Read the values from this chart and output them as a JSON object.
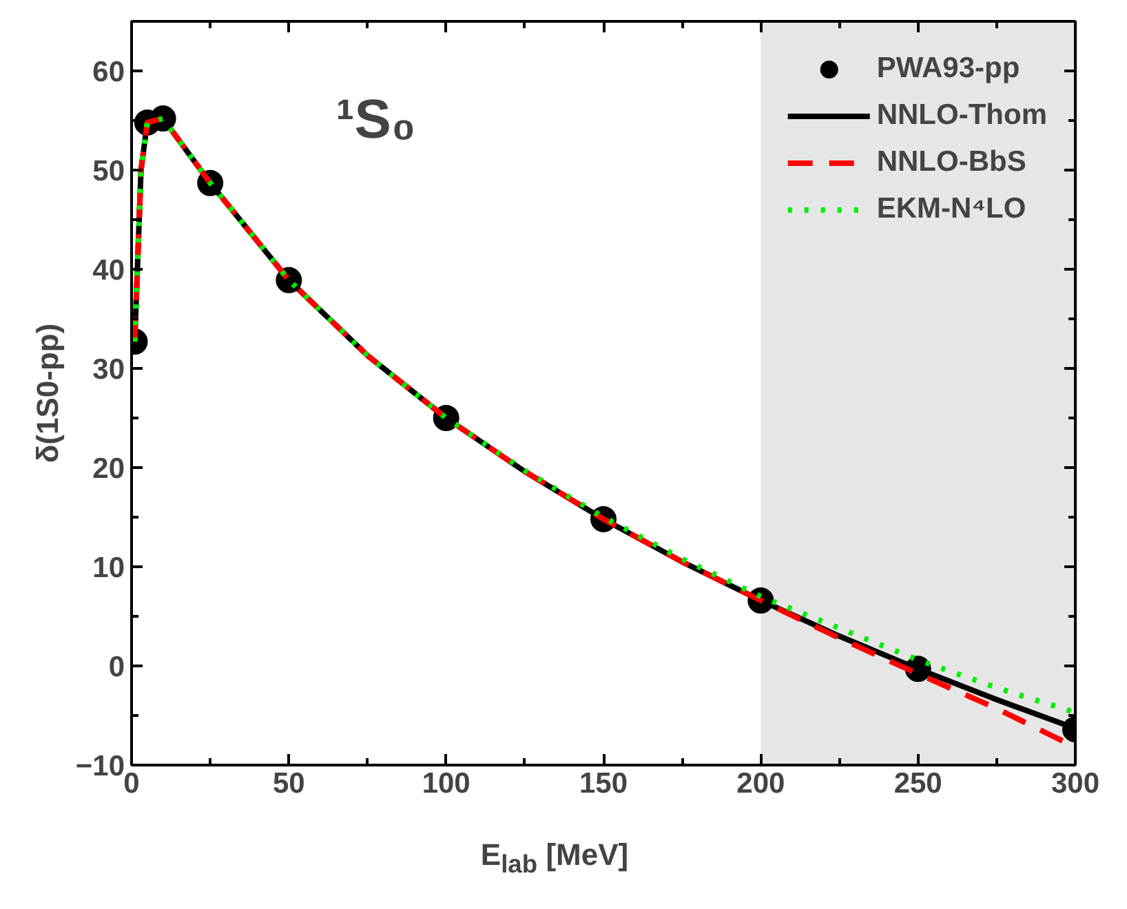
{
  "chart_data": {
    "type": "line",
    "xlabel": "E$_{lab}$ [MeV]",
    "ylabel": "δ(1S0-pp)",
    "annotations": [
      "¹S₀"
    ],
    "xlim": [
      0,
      300
    ],
    "xticks": [
      0,
      50,
      100,
      150,
      200,
      250,
      300
    ],
    "ylim": [
      -10,
      65
    ],
    "yticks": [
      -10,
      0,
      10,
      20,
      30,
      40,
      50,
      60
    ],
    "grid": false,
    "legend": "top right",
    "bands": [
      {
        "axis": "x",
        "from": 200,
        "to": 300,
        "color": "#e6e6e6"
      }
    ],
    "series": [
      {
        "name": "PWA93-pp",
        "type": "scatter",
        "marker": "circle",
        "color": "#000000",
        "x": [
          1,
          5,
          10,
          25,
          50,
          100,
          150,
          200,
          250,
          300
        ],
        "values": [
          32.7,
          54.8,
          55.2,
          48.7,
          38.9,
          25.0,
          14.8,
          6.6,
          -0.3,
          -6.4
        ]
      },
      {
        "name": "NNLO-Thom",
        "line_style": "solid",
        "color": "#000000",
        "x": [
          1,
          3,
          5,
          10,
          25,
          50,
          75,
          100,
          125,
          150,
          175,
          200,
          225,
          250,
          275,
          300
        ],
        "values": [
          32.7,
          50.0,
          54.8,
          55.2,
          48.7,
          38.9,
          31.3,
          25.0,
          19.6,
          14.8,
          10.5,
          6.6,
          3.0,
          -0.3,
          -3.4,
          -6.3
        ]
      },
      {
        "name": "NNLO-BbS",
        "line_style": "dashed",
        "color": "#ff0000",
        "x": [
          1,
          3,
          5,
          10,
          25,
          50,
          75,
          100,
          125,
          150,
          175,
          200,
          225,
          250,
          275,
          300
        ],
        "values": [
          32.7,
          50.0,
          54.8,
          55.2,
          48.7,
          38.9,
          31.3,
          25.0,
          19.6,
          14.8,
          10.5,
          6.6,
          2.8,
          -0.8,
          -4.3,
          -8.2
        ]
      },
      {
        "name": "EKM-N⁴LO",
        "line_style": "dotted",
        "color": "#00ee00",
        "x": [
          1,
          3,
          5,
          10,
          25,
          50,
          75,
          100,
          125,
          150,
          175,
          200,
          225,
          250,
          275,
          300
        ],
        "values": [
          32.7,
          50.0,
          54.8,
          55.2,
          48.7,
          38.9,
          31.3,
          25.0,
          19.7,
          15.0,
          10.8,
          7.0,
          3.8,
          0.6,
          -2.2,
          -4.7
        ]
      }
    ]
  }
}
